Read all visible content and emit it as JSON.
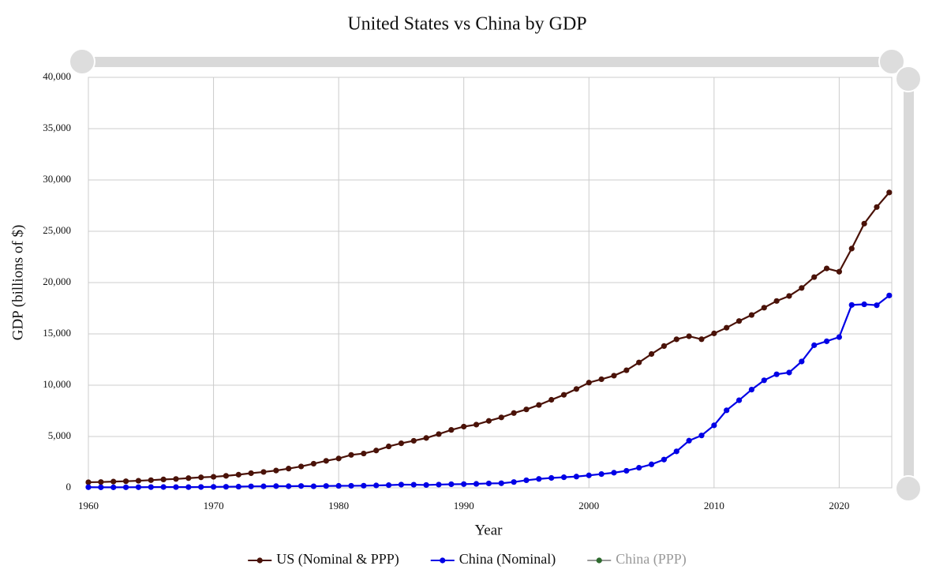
{
  "chart_data": {
    "type": "line",
    "title": "United States vs China by GDP",
    "x_label": "Year",
    "y_label": "GDP (billions of $)",
    "x": [
      1960,
      1961,
      1962,
      1963,
      1964,
      1965,
      1966,
      1967,
      1968,
      1969,
      1970,
      1971,
      1972,
      1973,
      1974,
      1975,
      1976,
      1977,
      1978,
      1979,
      1980,
      1981,
      1982,
      1983,
      1984,
      1985,
      1986,
      1987,
      1988,
      1989,
      1990,
      1991,
      1992,
      1993,
      1994,
      1995,
      1996,
      1997,
      1998,
      1999,
      2000,
      2001,
      2002,
      2003,
      2004,
      2005,
      2006,
      2007,
      2008,
      2009,
      2010,
      2011,
      2012,
      2013,
      2014,
      2015,
      2016,
      2017,
      2018,
      2019,
      2020,
      2021,
      2022,
      2023,
      2024
    ],
    "xlim": [
      1960,
      2024.2
    ],
    "xticks": [
      1960,
      1970,
      1980,
      1990,
      2000,
      2010,
      2020
    ],
    "ylim": [
      0,
      40000
    ],
    "yticks": [
      0,
      {
        "value": 5000,
        "label": "5,000"
      },
      {
        "value": 10000,
        "label": "10,000"
      },
      {
        "value": 15000,
        "label": "15,000"
      },
      {
        "value": 20000,
        "label": "20,000"
      },
      {
        "value": 25000,
        "label": "25,000"
      },
      {
        "value": 30000,
        "label": "30,000"
      },
      {
        "value": 35000,
        "label": "35,000"
      },
      {
        "value": 40000,
        "label": "40,000"
      }
    ],
    "grid": true,
    "legend": "bottom",
    "series": [
      {
        "name": "US (Nominal & PPP)",
        "color": "#4a1208",
        "values": [
          543,
          563,
          605,
          638,
          686,
          744,
          815,
          862,
          943,
          1019,
          1073,
          1165,
          1279,
          1425,
          1545,
          1684,
          1873,
          2082,
          2352,
          2627,
          2857,
          3207,
          3343,
          3634,
          4037,
          4339,
          4580,
          4855,
          5236,
          5642,
          5963,
          6158,
          6520,
          6859,
          7287,
          7640,
          8073,
          8578,
          9063,
          9631,
          10251,
          10582,
          10929,
          11457,
          12217,
          13039,
          13816,
          14474,
          14770,
          14478,
          15049,
          15600,
          16254,
          16843,
          17551,
          18206,
          18695,
          19477,
          20533,
          21381,
          21060,
          23315,
          25744,
          27361,
          28781
        ]
      },
      {
        "name": "China (Nominal)",
        "color": "#0000e6",
        "values": [
          60,
          50,
          47,
          51,
          59,
          70,
          76,
          72,
          70,
          79,
          93,
          100,
          114,
          139,
          144,
          163,
          154,
          175,
          150,
          178,
          191,
          196,
          205,
          231,
          260,
          309,
          301,
          273,
          313,
          348,
          361,
          383,
          427,
          445,
          564,
          734,
          864,
          962,
          1029,
          1094,
          1211,
          1339,
          1471,
          1660,
          1955,
          2286,
          2752,
          3550,
          4594,
          5102,
          6087,
          7552,
          8532,
          9570,
          10476,
          11062,
          11233,
          12310,
          13895,
          14280,
          14688,
          17820,
          17882,
          17795,
          18743
        ]
      },
      {
        "name": "China (PPP)",
        "color": "#2e6b2e",
        "hidden": true,
        "values": [
          null,
          null,
          null,
          null,
          null,
          null,
          null,
          null,
          null,
          null,
          null,
          null,
          null,
          null,
          null,
          null,
          null,
          null,
          null,
          null,
          null,
          null,
          null,
          null,
          null,
          null,
          null,
          null,
          null,
          null,
          null,
          null,
          null,
          null,
          null,
          null,
          null,
          null,
          null,
          null,
          null,
          null,
          null,
          null,
          null,
          null,
          null,
          null,
          null,
          null,
          null,
          null,
          null,
          null,
          null,
          null,
          null,
          null,
          null,
          null,
          null,
          null,
          null,
          null,
          null
        ]
      }
    ]
  }
}
